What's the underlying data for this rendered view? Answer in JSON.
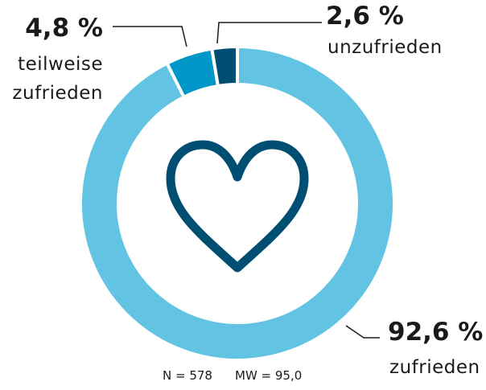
{
  "chart_data": {
    "type": "donut",
    "categories": [
      "zufrieden",
      "teilweise zufrieden",
      "unzufrieden"
    ],
    "values": [
      92.6,
      4.8,
      2.6
    ],
    "value_labels": [
      "92,6 %",
      "4,8 %",
      "2,6 %"
    ],
    "colors": [
      "#62c3e3",
      "#0096c8",
      "#004f73"
    ],
    "annotations": [
      "N = 578",
      "MW = 95,0"
    ]
  }
}
